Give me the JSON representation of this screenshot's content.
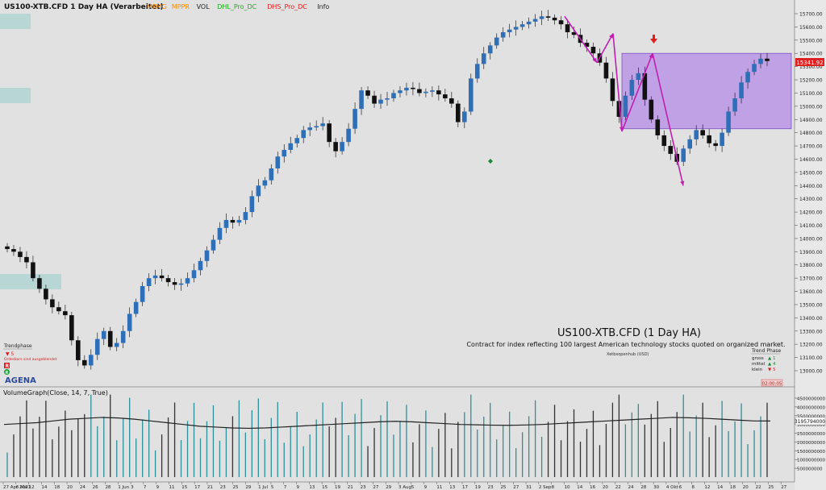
{
  "header": {
    "title": "US100-XTB.CFD 1 Day HA (Verarbeitet)",
    "indicators": [
      {
        "label": "MPMG",
        "color": "#ff8c00"
      },
      {
        "label": "MPPR",
        "color": "#ff8c00"
      },
      {
        "label": "VOL",
        "color": "#222222"
      },
      {
        "label": "DHL_Pro_DC",
        "color": "#22aa22"
      },
      {
        "label": "DHS_Pro_DC",
        "color": "#e02020"
      },
      {
        "label": "Info",
        "color": "#222222"
      }
    ]
  },
  "info": {
    "big_title": "US100-XTB.CFD (1 Day HA)",
    "description": "Contract for index reflecting 100 largest American technology stocks quoted on organized market.",
    "source": "Xetbxopenhub   (USD)"
  },
  "trendphase_left": {
    "title": "Trendphase",
    "count": "▼ 5",
    "note": "Orderbars sind ausgeblendet",
    "badge1": "R",
    "badge2": "R",
    "logo": "AGENA"
  },
  "trendphase_right": {
    "title": "Trend Phase",
    "rows": [
      {
        "label": "gross",
        "value": "▲ 1"
      },
      {
        "label": "mittel",
        "value": "▲ 4"
      },
      {
        "label": "klein",
        "value": "▼ 5"
      }
    ]
  },
  "current_price_label": "15341.92",
  "timer": "02:00:05",
  "volume_title": "VolumeGraph(Close, 14, 7, True)",
  "volume_current_label": "3195794000",
  "chart_data": [
    {
      "type": "candlestick",
      "subtype": "heikin-ashi",
      "price_axis": {
        "range": [
          12850,
          15800
        ],
        "ticks": [
          13000,
          13100,
          13200,
          13300,
          13400,
          13500,
          13600,
          13700,
          13800,
          13900,
          14000,
          14100,
          14200,
          14300,
          14400,
          14500,
          14600,
          14700,
          14800,
          14900,
          15000,
          15100,
          15200,
          15300,
          15400,
          15500,
          15600,
          15700
        ]
      },
      "date_labels": [
        "27 Apr 2021",
        "6 Mai",
        "12",
        "14",
        "18",
        "20",
        "24",
        "26",
        "28",
        "1 Jun",
        "3",
        "7",
        "9",
        "11",
        "15",
        "17",
        "21",
        "23",
        "25",
        "29",
        "1 Jul",
        "5",
        "7",
        "9",
        "13",
        "15",
        "19",
        "21",
        "23",
        "27",
        "29",
        "3 Aug",
        "5",
        "9",
        "11",
        "13",
        "17",
        "19",
        "23",
        "25",
        "27",
        "31",
        "2 Sep",
        "8",
        "10",
        "14",
        "16",
        "20",
        "22",
        "24",
        "28",
        "30",
        "4 Okt",
        "6",
        "8",
        "12",
        "14",
        "18",
        "20",
        "22",
        "25",
        "27"
      ],
      "candles_close": [
        13920,
        13900,
        13860,
        13820,
        13700,
        13620,
        13540,
        13480,
        13450,
        13420,
        13230,
        13080,
        13040,
        13120,
        13240,
        13300,
        13180,
        13210,
        13300,
        13430,
        13520,
        13640,
        13700,
        13720,
        13700,
        13670,
        13650,
        13660,
        13700,
        13760,
        13830,
        13910,
        13990,
        14080,
        14140,
        14120,
        14140,
        14200,
        14320,
        14400,
        14440,
        14530,
        14620,
        14670,
        14720,
        14760,
        14820,
        14840,
        14850,
        14870,
        14730,
        14660,
        14730,
        14830,
        14980,
        15120,
        15080,
        15020,
        15050,
        15060,
        15100,
        15120,
        15140,
        15130,
        15100,
        15110,
        15120,
        15090,
        15060,
        15020,
        14880,
        14960,
        15210,
        15320,
        15400,
        15460,
        15520,
        15560,
        15580,
        15600,
        15620,
        15640,
        15660,
        15680,
        15670,
        15650,
        15620,
        15560,
        15540,
        15480,
        15450,
        15400,
        15330,
        15210,
        15040,
        14920,
        15080,
        15200,
        15250,
        15050,
        14900,
        14780,
        14700,
        14640,
        14580,
        14680,
        14750,
        14820,
        14780,
        14720,
        14700,
        14800,
        14960,
        15060,
        15180,
        15260,
        15320,
        15360,
        15341.92
      ],
      "current_price": 15341.92,
      "highlight_zone": {
        "top": 15400,
        "bottom": 14830
      },
      "zigzag_points": [
        15680,
        15330,
        15550,
        14810,
        15400,
        14400
      ]
    },
    {
      "type": "bar",
      "title": "VolumeGraph(Close, 14, 7, True)",
      "axis": {
        "range": [
          0,
          5000000000
        ],
        "ticks": [
          500000000,
          1000000000,
          1500000000,
          2000000000,
          2500000000,
          3000000000,
          3500000000,
          4000000000,
          4500000000
        ]
      },
      "current_volume": 3195794000,
      "average_line": [
        3000000000,
        3050000000,
        3100000000,
        3200000000,
        3300000000,
        3350000000,
        3400000000,
        3370000000,
        3300000000,
        3200000000,
        3100000000,
        3000000000,
        2900000000,
        2850000000,
        2800000000,
        2780000000,
        2800000000,
        2850000000,
        2900000000,
        2950000000,
        3000000000,
        3050000000,
        3100000000,
        3150000000,
        3180000000,
        3150000000,
        3100000000,
        3050000000,
        3000000000,
        2980000000,
        2960000000,
        2950000000,
        2970000000,
        3000000000,
        3050000000,
        3100000000,
        3150000000,
        3200000000,
        3250000000,
        3300000000,
        3350000000,
        3400000000,
        3380000000,
        3350000000,
        3300000000,
        3250000000,
        3200000000,
        3195794000
      ]
    }
  ]
}
